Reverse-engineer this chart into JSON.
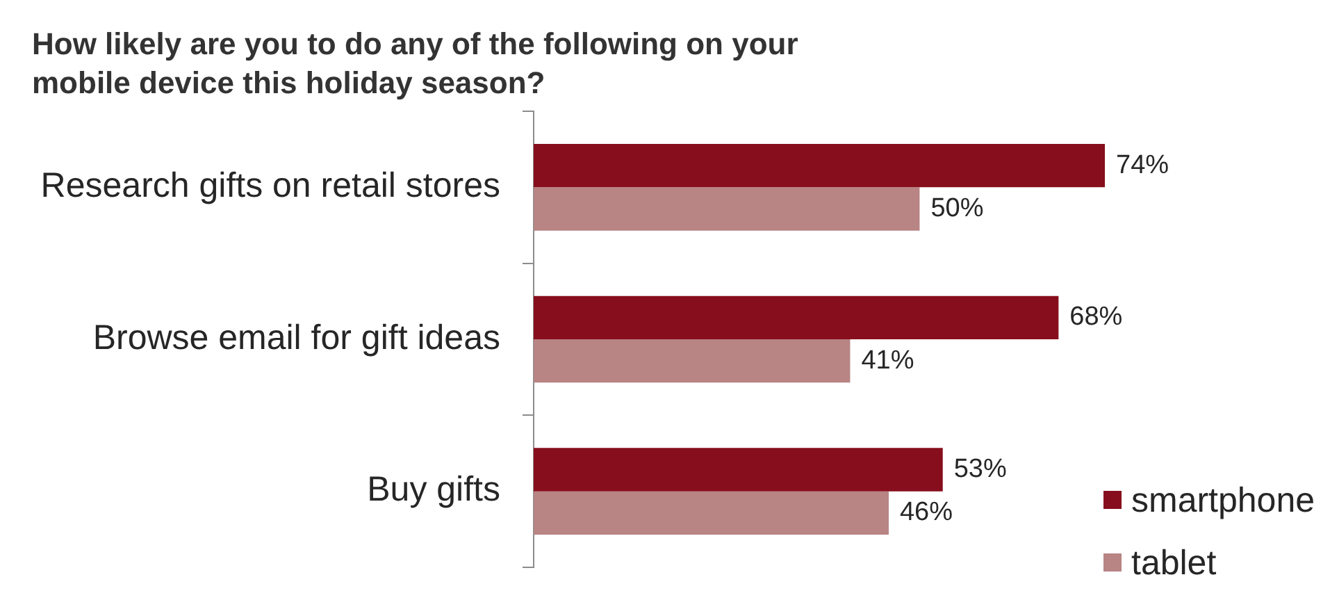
{
  "chart_data": {
    "type": "bar",
    "orientation": "horizontal",
    "title": "How likely are you to do any of the following on your mobile device this holiday season?",
    "categories": [
      "Research gifts on retail stores",
      "Browse email for gift ideas",
      "Buy gifts"
    ],
    "series": [
      {
        "name": "smartphone",
        "color": "#870e1c",
        "values": [
          74,
          68,
          53
        ],
        "value_labels": [
          "74%",
          "68%",
          "53%"
        ]
      },
      {
        "name": "tablet",
        "color": "#b88484",
        "values": [
          50,
          41,
          46
        ],
        "value_labels": [
          "50%",
          "41%",
          "46%"
        ]
      }
    ],
    "tick_labels": "y",
    "grid": false,
    "legend": "bottom right"
  }
}
